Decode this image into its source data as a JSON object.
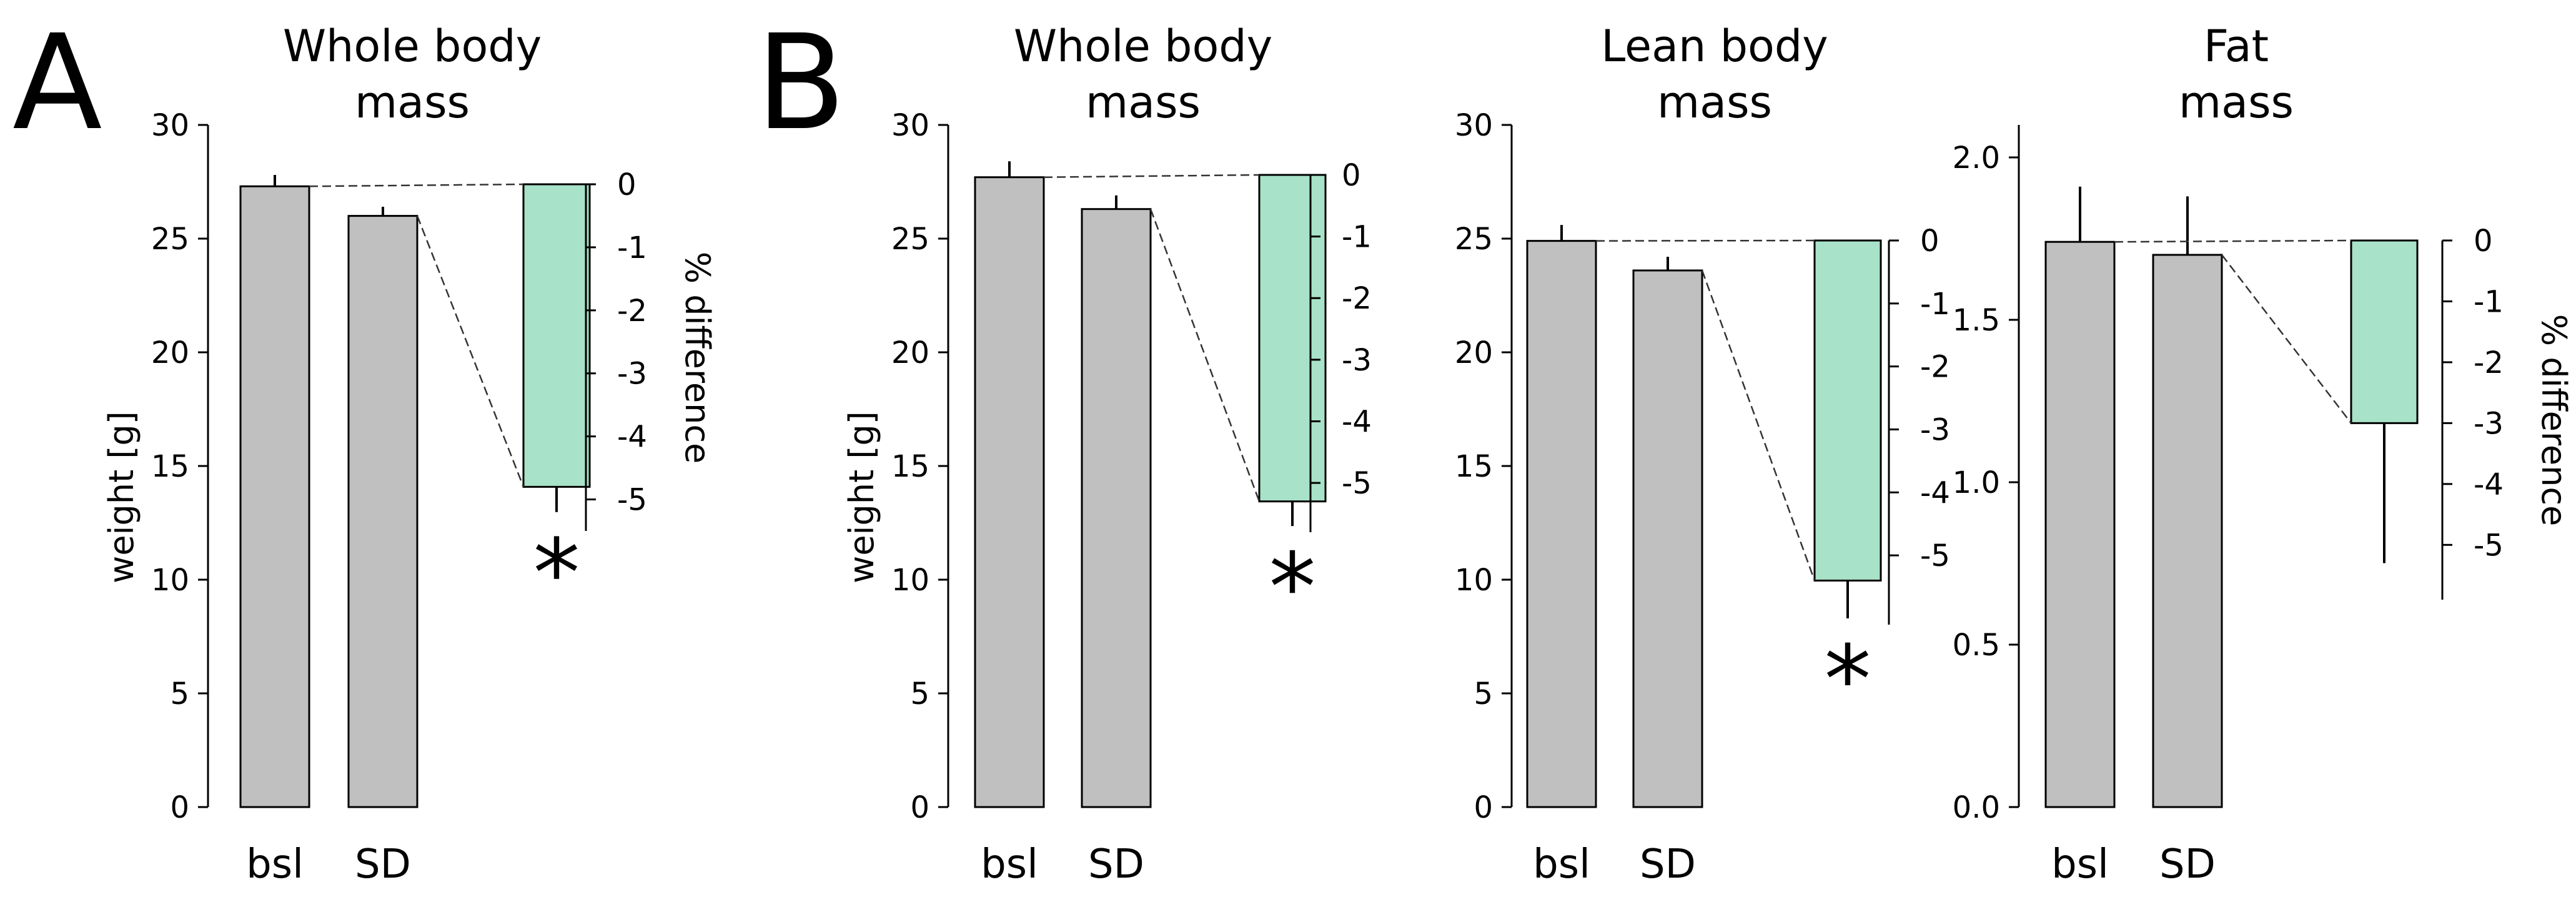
{
  "figure": {
    "panel_labels": [
      "A",
      "B"
    ]
  },
  "colors": {
    "bar_gray": "#c0c0c0",
    "bar_green": "#a8e2c8",
    "line": "#000000"
  },
  "chart_data": [
    {
      "type": "bar",
      "panel": "A",
      "title_lines": [
        "Whole body",
        "mass"
      ],
      "ylabel": "weight [g]",
      "y2label": "% difference",
      "categories": [
        "bsl",
        "SD"
      ],
      "values": [
        27.3,
        26.0
      ],
      "errors": [
        0.5,
        0.4
      ],
      "ylim": [
        0,
        30
      ],
      "yticks": [
        0,
        5,
        10,
        15,
        20,
        25,
        30
      ],
      "ytick_labels": [
        "0",
        "5",
        "10",
        "15",
        "20",
        "25",
        "30"
      ],
      "diff_value": -4.8,
      "diff_error": 0.4,
      "y2lim": [
        -5.5,
        0
      ],
      "y2ticks": [
        0,
        -1,
        -2,
        -3,
        -4,
        -5
      ],
      "y2tick_labels": [
        "0",
        "-1",
        "-2",
        "-3",
        "-4",
        "-5"
      ],
      "significance": "*"
    },
    {
      "type": "bar",
      "panel": "B",
      "title_lines": [
        "Whole body",
        "mass"
      ],
      "ylabel": "weight [g]",
      "y2label": "",
      "categories": [
        "bsl",
        "SD"
      ],
      "values": [
        27.7,
        26.3
      ],
      "errors": [
        0.7,
        0.6
      ],
      "ylim": [
        0,
        30
      ],
      "yticks": [
        0,
        5,
        10,
        15,
        20,
        25,
        30
      ],
      "ytick_labels": [
        "0",
        "5",
        "10",
        "15",
        "20",
        "25",
        "30"
      ],
      "diff_value": -5.3,
      "diff_error": 0.4,
      "y2lim": [
        -5.8,
        0
      ],
      "y2ticks": [
        0,
        -1,
        -2,
        -3,
        -4,
        -5
      ],
      "y2tick_labels": [
        "0",
        "-1",
        "-2",
        "-3",
        "-4",
        "-5"
      ],
      "significance": "*"
    },
    {
      "type": "bar",
      "panel": "B",
      "title_lines": [
        "Lean body",
        "mass"
      ],
      "ylabel": "",
      "y2label": "",
      "categories": [
        "bsl",
        "SD"
      ],
      "values": [
        24.9,
        23.6
      ],
      "errors": [
        0.7,
        0.6
      ],
      "ylim": [
        0,
        30
      ],
      "yticks": [
        0,
        5,
        10,
        15,
        20,
        25,
        30
      ],
      "ytick_labels": [
        "0",
        "5",
        "10",
        "15",
        "20",
        "25",
        "30"
      ],
      "diff_value": -5.4,
      "diff_error": 0.6,
      "y2lim": [
        -6.1,
        0
      ],
      "y2ticks": [
        0,
        -1,
        -2,
        -3,
        -4,
        -5
      ],
      "y2tick_labels": [
        "0",
        "-1",
        "-2",
        "-3",
        "-4",
        "-5"
      ],
      "significance": "*"
    },
    {
      "type": "bar",
      "panel": "B",
      "title_lines": [
        "Fat",
        "mass"
      ],
      "ylabel": "",
      "y2label": "% difference",
      "categories": [
        "bsl",
        "SD"
      ],
      "values": [
        1.74,
        1.7
      ],
      "errors": [
        0.17,
        0.18
      ],
      "ylim": [
        0,
        2.1
      ],
      "yticks": [
        0,
        0.5,
        1.0,
        1.5,
        2.0
      ],
      "ytick_labels": [
        "0.0",
        "0.5",
        "1.0",
        "1.5",
        "2.0"
      ],
      "diff_value": -3.0,
      "diff_error": 2.3,
      "y2lim": [
        -5.9,
        0
      ],
      "y2ticks": [
        0,
        -1,
        -2,
        -3,
        -4,
        -5
      ],
      "y2tick_labels": [
        "0",
        "-1",
        "-2",
        "-3",
        "-4",
        "-5"
      ],
      "significance": ""
    }
  ]
}
